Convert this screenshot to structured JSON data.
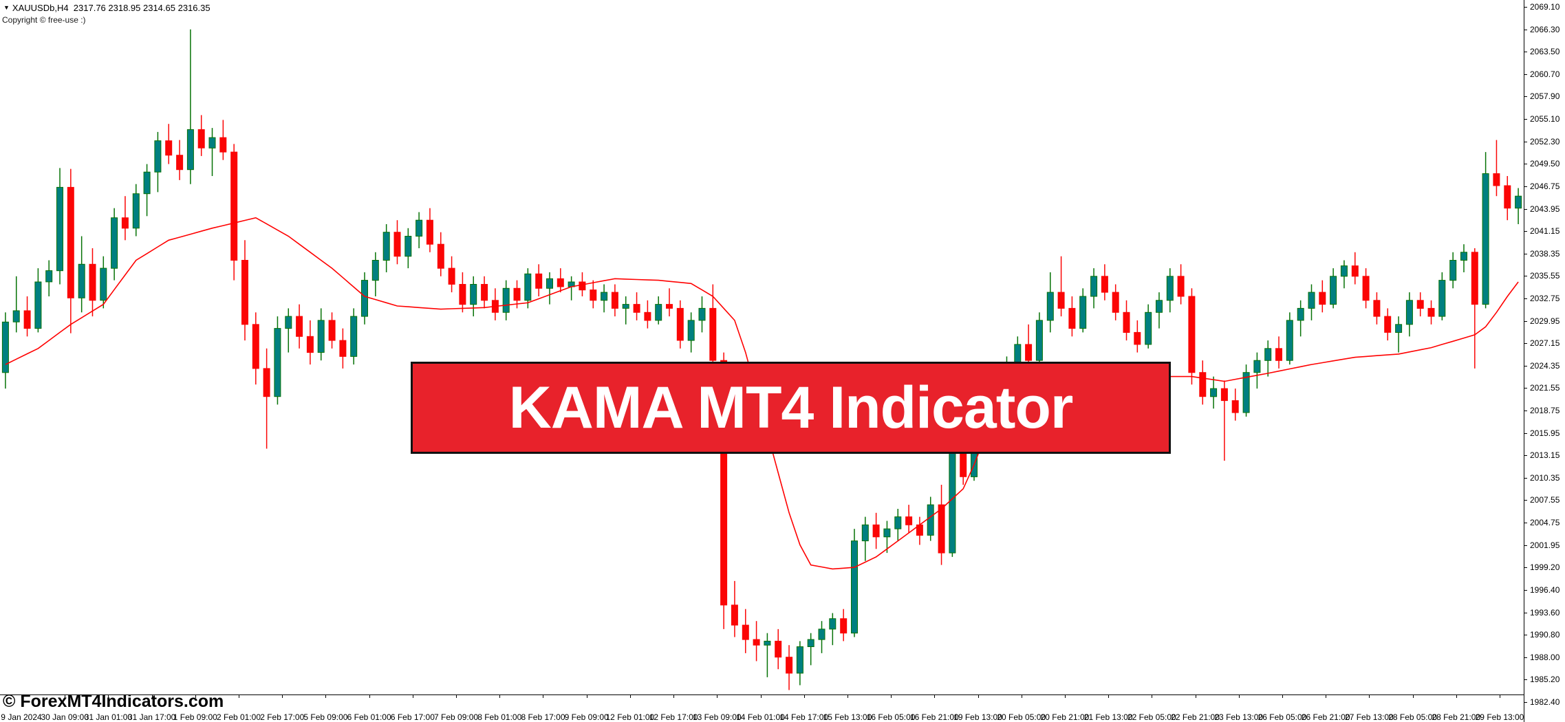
{
  "header": {
    "dropdown_icon": "triangle-down",
    "symbol_line": "XAUUSDb,H4  2317.76 2318.95 2314.65 2316.35",
    "copyright": "Copyright © free-use :)"
  },
  "watermark": "© ForexMT4Indicators.com",
  "banner": {
    "title": "KAMA MT4 Indicator",
    "bg_color": "#e8222b",
    "text_color": "#ffffff"
  },
  "colors": {
    "background": "#ffffff",
    "bull_body": "#008080",
    "bull_edge": "#067206",
    "bear_body": "#fb0505",
    "kama_line": "#ff0000",
    "axis_text": "#000000"
  },
  "chart_data": {
    "type": "candlestick",
    "symbol": "XAUUSDb",
    "timeframe": "H4",
    "title": "",
    "xlabel": "",
    "ylabel": "",
    "grid": false,
    "ylim": [
      1982.4,
      2069.1
    ],
    "price_axis_labels": [
      "2069.10",
      "2066.30",
      "2063.50",
      "2060.70",
      "2057.90",
      "2055.10",
      "2052.30",
      "2049.50",
      "2046.75",
      "2043.95",
      "2041.15",
      "2038.35",
      "2035.55",
      "2032.75",
      "2029.95",
      "2027.15",
      "2024.35",
      "2021.55",
      "2018.75",
      "2015.95",
      "2013.15",
      "2010.35",
      "2007.55",
      "2004.75",
      "2001.95",
      "1999.20",
      "1996.40",
      "1993.60",
      "1990.80",
      "1988.00",
      "1985.20",
      "1982.40"
    ],
    "time_axis_labels": [
      "9 Jan 2024",
      "30 Jan 09:00",
      "31 Jan 01:00",
      "31 Jan 17:00",
      "1 Feb 09:00",
      "2 Feb 01:00",
      "2 Feb 17:00",
      "5 Feb 09:00",
      "6 Feb 01:00",
      "6 Feb 17:00",
      "7 Feb 09:00",
      "8 Feb 01:00",
      "8 Feb 17:00",
      "9 Feb 09:00",
      "12 Feb 01:00",
      "12 Feb 17:00",
      "13 Feb 09:00",
      "14 Feb 01:00",
      "14 Feb 17:00",
      "15 Feb 13:00",
      "16 Feb 05:00",
      "16 Feb 21:00",
      "19 Feb 13:00",
      "20 Feb 05:00",
      "20 Feb 21:00",
      "21 Feb 13:00",
      "22 Feb 05:00",
      "22 Feb 21:00",
      "23 Feb 13:00",
      "26 Feb 05:00",
      "26 Feb 21:00",
      "27 Feb 13:00",
      "28 Feb 05:00",
      "28 Feb 21:00",
      "29 Feb 13:00"
    ],
    "candles": [
      [
        2023.5,
        2031.0,
        2021.5,
        2029.8
      ],
      [
        2029.8,
        2035.5,
        2028.5,
        2031.2
      ],
      [
        2031.2,
        2033.0,
        2028.0,
        2029.0
      ],
      [
        2029.0,
        2036.5,
        2028.5,
        2034.8
      ],
      [
        2034.8,
        2037.5,
        2033.0,
        2036.2
      ],
      [
        2036.2,
        2049.0,
        2034.5,
        2046.6
      ],
      [
        2046.6,
        2048.9,
        2028.4,
        2032.8
      ],
      [
        2032.8,
        2040.5,
        2031.0,
        2037.0
      ],
      [
        2037.0,
        2039.0,
        2030.5,
        2032.5
      ],
      [
        2032.5,
        2038.0,
        2031.5,
        2036.5
      ],
      [
        2036.5,
        2044.0,
        2035.0,
        2042.8
      ],
      [
        2042.8,
        2045.5,
        2040.0,
        2041.5
      ],
      [
        2041.5,
        2047.0,
        2040.5,
        2045.8
      ],
      [
        2045.8,
        2049.5,
        2043.0,
        2048.5
      ],
      [
        2048.5,
        2053.5,
        2046.0,
        2052.4
      ],
      [
        2052.4,
        2054.5,
        2049.5,
        2050.6
      ],
      [
        2050.6,
        2052.5,
        2047.5,
        2048.8
      ],
      [
        2048.8,
        2066.3,
        2047.0,
        2053.8
      ],
      [
        2053.8,
        2055.6,
        2050.5,
        2051.5
      ],
      [
        2051.5,
        2054.0,
        2048.0,
        2052.8
      ],
      [
        2052.8,
        2055.0,
        2050.0,
        2051.0
      ],
      [
        2051.0,
        2052.0,
        2035.0,
        2037.5
      ],
      [
        2037.5,
        2040.0,
        2027.5,
        2029.5
      ],
      [
        2029.5,
        2031.0,
        2022.0,
        2024.0
      ],
      [
        2024.0,
        2026.5,
        2014.0,
        2020.5
      ],
      [
        2020.5,
        2030.5,
        2019.5,
        2029.0
      ],
      [
        2029.0,
        2031.5,
        2026.0,
        2030.5
      ],
      [
        2030.5,
        2032.0,
        2026.5,
        2028.0
      ],
      [
        2028.0,
        2030.0,
        2024.5,
        2026.0
      ],
      [
        2026.0,
        2031.5,
        2025.0,
        2030.0
      ],
      [
        2030.0,
        2031.0,
        2026.5,
        2027.5
      ],
      [
        2027.5,
        2029.0,
        2024.0,
        2025.5
      ],
      [
        2025.5,
        2031.5,
        2024.5,
        2030.5
      ],
      [
        2030.5,
        2036.0,
        2029.5,
        2035.0
      ],
      [
        2035.0,
        2038.5,
        2033.0,
        2037.5
      ],
      [
        2037.5,
        2042.0,
        2036.0,
        2041.0
      ],
      [
        2041.0,
        2042.5,
        2037.0,
        2038.0
      ],
      [
        2038.0,
        2041.5,
        2036.5,
        2040.5
      ],
      [
        2040.5,
        2043.5,
        2039.0,
        2042.5
      ],
      [
        2042.5,
        2044.0,
        2038.5,
        2039.5
      ],
      [
        2039.5,
        2041.0,
        2035.5,
        2036.5
      ],
      [
        2036.5,
        2038.0,
        2033.5,
        2034.5
      ],
      [
        2034.5,
        2036.0,
        2031.0,
        2032.0
      ],
      [
        2032.0,
        2035.5,
        2030.5,
        2034.5
      ],
      [
        2034.5,
        2035.5,
        2031.5,
        2032.5
      ],
      [
        2032.5,
        2034.0,
        2030.0,
        2031.0
      ],
      [
        2031.0,
        2035.0,
        2030.0,
        2034.0
      ],
      [
        2034.0,
        2035.0,
        2031.5,
        2032.5
      ],
      [
        2032.5,
        2036.5,
        2031.5,
        2035.8
      ],
      [
        2035.8,
        2037.0,
        2033.0,
        2034.0
      ],
      [
        2034.0,
        2036.0,
        2032.0,
        2035.2
      ],
      [
        2035.2,
        2036.5,
        2033.5,
        2034.2
      ],
      [
        2034.2,
        2035.5,
        2032.5,
        2034.8
      ],
      [
        2034.8,
        2036.0,
        2033.0,
        2033.8
      ],
      [
        2033.8,
        2035.0,
        2031.5,
        2032.5
      ],
      [
        2032.5,
        2034.5,
        2031.0,
        2033.5
      ],
      [
        2033.5,
        2034.5,
        2030.5,
        2031.5
      ],
      [
        2031.5,
        2033.0,
        2029.5,
        2032.0
      ],
      [
        2032.0,
        2033.5,
        2030.0,
        2031.0
      ],
      [
        2031.0,
        2032.5,
        2029.0,
        2030.0
      ],
      [
        2030.0,
        2033.0,
        2029.5,
        2032.0
      ],
      [
        2032.0,
        2034.0,
        2030.5,
        2031.5
      ],
      [
        2031.5,
        2032.5,
        2026.5,
        2027.5
      ],
      [
        2027.5,
        2031.0,
        2026.0,
        2030.0
      ],
      [
        2030.0,
        2033.0,
        2028.5,
        2031.5
      ],
      [
        2031.5,
        2034.5,
        2024.0,
        2025.0
      ],
      [
        2025.0,
        2026.0,
        1991.5,
        1994.5
      ],
      [
        1994.5,
        1997.5,
        1990.5,
        1992.0
      ],
      [
        1992.0,
        1994.0,
        1988.5,
        1990.2
      ],
      [
        1990.2,
        1992.5,
        1987.5,
        1989.5
      ],
      [
        1989.5,
        1991.0,
        1985.5,
        1990.0
      ],
      [
        1990.0,
        1991.5,
        1986.5,
        1988.0
      ],
      [
        1988.0,
        1989.5,
        1983.9,
        1986.0
      ],
      [
        1986.0,
        1990.0,
        1984.5,
        1989.3
      ],
      [
        1989.3,
        1991.0,
        1987.0,
        1990.2
      ],
      [
        1990.2,
        1992.5,
        1988.5,
        1991.5
      ],
      [
        1991.5,
        1993.5,
        1989.5,
        1992.8
      ],
      [
        1992.8,
        1994.0,
        1990.0,
        1991.0
      ],
      [
        1991.0,
        2004.0,
        1990.5,
        2002.5
      ],
      [
        2002.5,
        2005.5,
        2000.0,
        2004.5
      ],
      [
        2004.5,
        2006.0,
        2001.5,
        2003.0
      ],
      [
        2003.0,
        2005.0,
        2001.0,
        2004.0
      ],
      [
        2004.0,
        2006.5,
        2002.5,
        2005.5
      ],
      [
        2005.5,
        2007.0,
        2003.5,
        2004.5
      ],
      [
        2004.5,
        2005.5,
        2002.0,
        2003.2
      ],
      [
        2003.2,
        2008.0,
        2002.5,
        2007.0
      ],
      [
        2007.0,
        2009.5,
        1999.5,
        2001.0
      ],
      [
        2001.0,
        2014.5,
        2000.5,
        2013.5
      ],
      [
        2013.5,
        2015.5,
        2009.5,
        2010.5
      ],
      [
        2010.5,
        2019.0,
        2010.0,
        2018.0
      ],
      [
        2018.0,
        2022.5,
        2016.5,
        2021.5
      ],
      [
        2021.5,
        2023.0,
        2018.0,
        2019.0
      ],
      [
        2019.0,
        2025.5,
        2018.5,
        2024.5
      ],
      [
        2024.5,
        2028.0,
        2023.0,
        2027.0
      ],
      [
        2027.0,
        2029.5,
        2024.0,
        2025.0
      ],
      [
        2025.0,
        2031.0,
        2024.5,
        2030.0
      ],
      [
        2030.0,
        2036.0,
        2028.5,
        2033.5
      ],
      [
        2033.5,
        2038.0,
        2030.5,
        2031.5
      ],
      [
        2031.5,
        2033.0,
        2028.0,
        2029.0
      ],
      [
        2029.0,
        2034.0,
        2028.5,
        2033.0
      ],
      [
        2033.0,
        2036.5,
        2031.5,
        2035.5
      ],
      [
        2035.5,
        2037.0,
        2032.5,
        2033.5
      ],
      [
        2033.5,
        2034.5,
        2030.0,
        2031.0
      ],
      [
        2031.0,
        2032.5,
        2027.5,
        2028.5
      ],
      [
        2028.5,
        2030.0,
        2026.0,
        2027.0
      ],
      [
        2027.0,
        2032.0,
        2026.5,
        2031.0
      ],
      [
        2031.0,
        2033.5,
        2029.0,
        2032.5
      ],
      [
        2032.5,
        2036.5,
        2031.0,
        2035.5
      ],
      [
        2035.5,
        2037.0,
        2032.0,
        2033.0
      ],
      [
        2033.0,
        2034.0,
        2022.0,
        2023.5
      ],
      [
        2023.5,
        2025.0,
        2019.5,
        2020.5
      ],
      [
        2020.5,
        2023.0,
        2019.0,
        2021.5
      ],
      [
        2021.5,
        2022.5,
        2012.5,
        2020.0
      ],
      [
        2020.0,
        2021.5,
        2017.5,
        2018.5
      ],
      [
        2018.5,
        2024.5,
        2018.0,
        2023.5
      ],
      [
        2023.5,
        2026.0,
        2021.5,
        2025.0
      ],
      [
        2025.0,
        2027.5,
        2023.0,
        2026.5
      ],
      [
        2026.5,
        2028.0,
        2024.0,
        2025.0
      ],
      [
        2025.0,
        2031.0,
        2024.5,
        2030.0
      ],
      [
        2030.0,
        2032.5,
        2028.0,
        2031.5
      ],
      [
        2031.5,
        2034.5,
        2030.0,
        2033.5
      ],
      [
        2033.5,
        2035.0,
        2031.0,
        2032.0
      ],
      [
        2032.0,
        2036.5,
        2031.5,
        2035.5
      ],
      [
        2035.5,
        2037.5,
        2034.0,
        2036.8
      ],
      [
        2036.8,
        2038.5,
        2034.5,
        2035.5
      ],
      [
        2035.5,
        2036.5,
        2031.5,
        2032.5
      ],
      [
        2032.5,
        2033.5,
        2029.5,
        2030.5
      ],
      [
        2030.5,
        2031.5,
        2027.5,
        2028.5
      ],
      [
        2028.5,
        2030.5,
        2026.0,
        2029.5
      ],
      [
        2029.5,
        2033.5,
        2028.0,
        2032.5
      ],
      [
        2032.5,
        2033.5,
        2030.5,
        2031.5
      ],
      [
        2031.5,
        2032.5,
        2029.5,
        2030.5
      ],
      [
        2030.5,
        2036.0,
        2030.0,
        2035.0
      ],
      [
        2035.0,
        2038.5,
        2034.0,
        2037.5
      ],
      [
        2037.5,
        2039.5,
        2036.0,
        2038.5
      ],
      [
        2038.5,
        2039.0,
        2024.0,
        2032.0
      ],
      [
        2032.0,
        2051.0,
        2031.5,
        2048.3
      ],
      [
        2048.3,
        2052.5,
        2045.5,
        2046.8
      ],
      [
        2046.8,
        2048.0,
        2042.5,
        2044.0
      ],
      [
        2044.0,
        2046.5,
        2042.0,
        2045.5
      ]
    ],
    "overlay": {
      "name": "KAMA",
      "color": "#ff0000",
      "waypoints": [
        [
          0,
          2024.5
        ],
        [
          3,
          2026.5
        ],
        [
          6,
          2029.5
        ],
        [
          9,
          2032.0
        ],
        [
          12,
          2037.5
        ],
        [
          15,
          2040.0
        ],
        [
          19,
          2041.5
        ],
        [
          23,
          2042.8
        ],
        [
          26,
          2040.5
        ],
        [
          30,
          2036.5
        ],
        [
          33,
          2033.0
        ],
        [
          36,
          2031.8
        ],
        [
          40,
          2031.4
        ],
        [
          44,
          2031.6
        ],
        [
          48,
          2032.2
        ],
        [
          52,
          2034.2
        ],
        [
          56,
          2035.2
        ],
        [
          60,
          2035.0
        ],
        [
          63,
          2034.6
        ],
        [
          65,
          2033.0
        ],
        [
          67,
          2030.0
        ],
        [
          68,
          2026.0
        ],
        [
          69,
          2021.0
        ],
        [
          70,
          2016.0
        ],
        [
          71,
          2011.0
        ],
        [
          72,
          2006.0
        ],
        [
          73,
          2002.0
        ],
        [
          74,
          1999.5
        ],
        [
          76,
          1999.0
        ],
        [
          78,
          1999.2
        ],
        [
          80,
          2000.5
        ],
        [
          82,
          2002.5
        ],
        [
          84,
          2004.5
        ],
        [
          86,
          2006.5
        ],
        [
          88,
          2009.0
        ],
        [
          89,
          2012.0
        ],
        [
          90,
          2015.5
        ],
        [
          91,
          2018.5
        ],
        [
          92,
          2020.5
        ],
        [
          94,
          2022.3
        ],
        [
          97,
          2023.0
        ],
        [
          101,
          2022.9
        ],
        [
          105,
          2023.0
        ],
        [
          109,
          2023.0
        ],
        [
          112,
          2022.4
        ],
        [
          116,
          2023.4
        ],
        [
          120,
          2024.5
        ],
        [
          124,
          2025.4
        ],
        [
          128,
          2025.8
        ],
        [
          131,
          2026.6
        ],
        [
          133,
          2027.4
        ],
        [
          134,
          2027.8
        ],
        [
          135,
          2028.2
        ],
        [
          136,
          2029.2
        ],
        [
          137,
          2031.0
        ],
        [
          138,
          2033.0
        ],
        [
          139,
          2034.8
        ]
      ]
    },
    "legend": []
  }
}
